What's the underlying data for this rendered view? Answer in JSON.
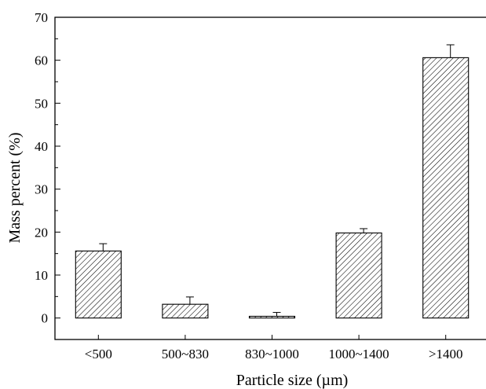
{
  "chart_data": {
    "type": "bar",
    "title": "",
    "xlabel": "Particle size (µm)",
    "ylabel": "Mass percent (%)",
    "categories": [
      "<500",
      "500~830",
      "830~1000",
      "1000~1400",
      ">1400"
    ],
    "values": [
      15.6,
      3.2,
      0.4,
      19.8,
      60.6
    ],
    "errors": [
      1.7,
      1.7,
      0.9,
      1.0,
      3.0
    ],
    "ylim": [
      -5,
      70
    ],
    "yticks": [
      0,
      10,
      20,
      30,
      40,
      50,
      60,
      70
    ],
    "grid": false,
    "bar_fill": "diagonal hatch",
    "colors": {
      "stroke": "#000000",
      "background": "#ffffff"
    }
  }
}
